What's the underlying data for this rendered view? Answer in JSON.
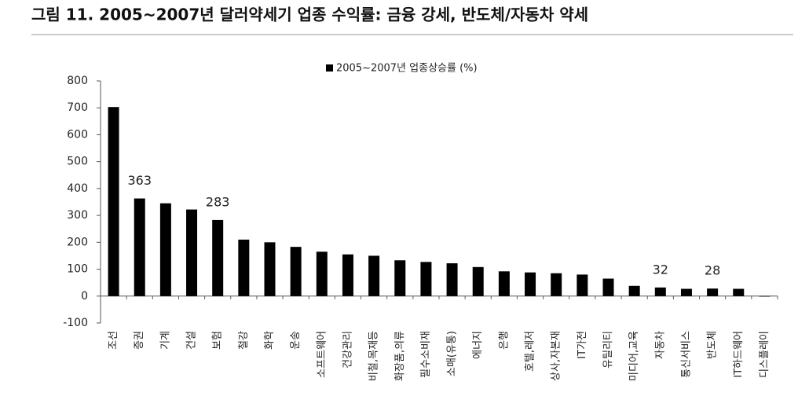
{
  "chart_data": {
    "type": "bar",
    "title": "그림 11. 2005~2007년 달러약세기 업종 수익률: 금융 강세, 반도체/자동차 약세",
    "legend_label": "2005~2007년 업종상승률 (%)",
    "color": "#000000",
    "categories": [
      "조선",
      "증권",
      "기계",
      "건설",
      "보험",
      "철강",
      "화학",
      "운송",
      "소프트웨어",
      "건강관리",
      "비철,목재등",
      "화장품,의류",
      "필수소비재",
      "소매(유통)",
      "에너지",
      "은행",
      "호텔,레저",
      "상사,자본재",
      "IT가전",
      "유틸리티",
      "미디어,교육",
      "자동차",
      "통신서비스",
      "반도체",
      "IT하드웨어",
      "디스플레이"
    ],
    "values": [
      703,
      363,
      345,
      322,
      283,
      210,
      200,
      183,
      165,
      155,
      150,
      133,
      127,
      122,
      108,
      92,
      88,
      85,
      80,
      65,
      38,
      32,
      27,
      28,
      27,
      -2
    ],
    "value_label_shown": [
      false,
      true,
      false,
      false,
      true,
      false,
      false,
      false,
      false,
      false,
      false,
      false,
      false,
      false,
      false,
      false,
      false,
      false,
      false,
      false,
      false,
      true,
      false,
      true,
      false,
      false
    ],
    "ylim": [
      -100,
      800
    ],
    "yticks": [
      -100,
      0,
      100,
      200,
      300,
      400,
      500,
      600,
      700,
      800
    ]
  }
}
